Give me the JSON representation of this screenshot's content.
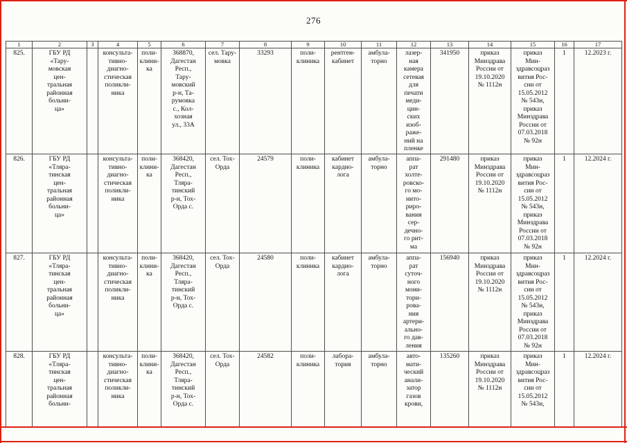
{
  "page": {
    "number": "276"
  },
  "annotation": {
    "line_color": "#dd1f12"
  },
  "table": {
    "column_numbers": [
      "1",
      "2",
      "3",
      "4",
      "5",
      "6",
      "7",
      "8",
      "9",
      "10",
      "11",
      "12",
      "13",
      "14",
      "15",
      "16",
      "17"
    ],
    "rows": [
      {
        "cells": [
          "825.",
          "ГБУ РД\n«Тару-\nмовская\nцен-\nтральная\nрайонная\nбольни-\nца»",
          "",
          "консульта-\nтивно-\nдиагно-\nстическая\nполикли-\nника",
          "поли-\nклини-\nка",
          "368870,\nДагестан\nРесп.,\nТару-\nмовский\nр-н, Та-\nрумовка\nс., Кол-\nхозная\nул., 33А",
          "сел. Тару-\nмовка",
          "33293",
          "поли-\nклиника",
          "рентген-\nкабинет",
          "амбула-\nторно",
          "лазер-\nная\nкамера\nсетевая\nдля\nпечати\nмеди-\nцин-\nских\nизоб-\nраже-\nний на\nпленке",
          "341950",
          "приказ\nМинздрава\nРоссии от\n19.10.2020\n№ 1112н",
          "приказ\nМин-\nздравсоцраз\nвития Рос-\nсии от\n15.05.2012\n№ 543н,\nприказ\nМинздрава\nРоссии от\n07.03.2018\n№ 92н",
          "1",
          "12.2023 г."
        ]
      },
      {
        "cells": [
          "826.",
          "ГБУ РД\n«Тляра-\nтинская\nцен-\nтральная\nрайонная\nбольни-\nца»",
          "",
          "консульта-\nтивно-\nдиагно-\nстическая\nполикли-\nника",
          "поли-\nклини-\nка",
          "368420,\nДагестан\nРесп.,\nТляра-\nтинский\nр-н, Тох-\nОрда с.",
          "сел. Тох-\nОрда",
          "24579",
          "поли-\nклиника",
          "кабинет\nкардио-\nлога",
          "амбула-\nторно",
          "аппа-\nрат\nхолте-\nровско-\nго мо-\nнито-\nриро-\nвания\nсер-\nдечно-\nго рит-\nма",
          "291480",
          "приказ\nМинздрава\nРоссии от\n19.10.2020\n№ 1112н",
          "приказ\nМин-\nздравсоцраз\nвития Рос-\nсии от\n15.05.2012\n№ 543н,\nприказ\nМинздрава\nРоссии от\n07.03.2018\n№ 92н",
          "1",
          "12.2024 г."
        ]
      },
      {
        "cells": [
          "827.",
          "ГБУ РД\n«Тляра-\nтинская\nцен-\nтральная\nрайонная\nбольни-\nца»",
          "",
          "консульта-\nтивно-\nдиагно-\nстическая\nполикли-\nника",
          "поли-\nклини-\nка",
          "368420,\nДагестан\nРесп.,\nТляра-\nтинский\nр-н, Тох-\nОрда с.",
          "сел. Тох-\nОрда",
          "24580",
          "поли-\nклиника",
          "кабинет\nкардио-\nлога",
          "амбула-\nторно",
          "аппа-\nрат\nсуточ-\nного\nмони-\nтори-\nрова-\nния\nартери-\nально-\nго дав-\nления",
          "156940",
          "приказ\nМинздрава\nРоссии от\n19.10.2020\n№ 1112н",
          "приказ\nМин-\nздравсоцраз\nвития Рос-\nсии от\n15.05.2012\n№ 543н,\nприказ\nМинздрава\nРоссии от\n07.03.2018\n№ 92н",
          "1",
          "12.2024 г."
        ]
      },
      {
        "cells": [
          "828.",
          "ГБУ РД\n«Тляра-\nтинская\nцен-\nтральная\nрайонная\nбольни-",
          "",
          "консульта-\nтивно-\nдиагно-\nстическая\nполикли-\nника",
          "поли-\nклини-\nка",
          "368420,\nДагестан\nРесп.,\nТляра-\nтинский\nр-н, Тох-\nОрда с.",
          "сел. Тох-\nОрда",
          "24582",
          "поли-\nклиника",
          "лабора-\nтория",
          "амбула-\nторно",
          "авто-\nмати-\nческий\nанали-\nзатор\nгазов\nкрови,",
          "135260",
          "приказ\nМинздрава\nРоссии от\n19.10.2020\n№ 1112н",
          "приказ\nМин-\nздравсоцраз\nвития Рос-\nсии от\n15.05.2012\n№ 543н,",
          "1",
          "12.2024 г."
        ]
      }
    ]
  }
}
